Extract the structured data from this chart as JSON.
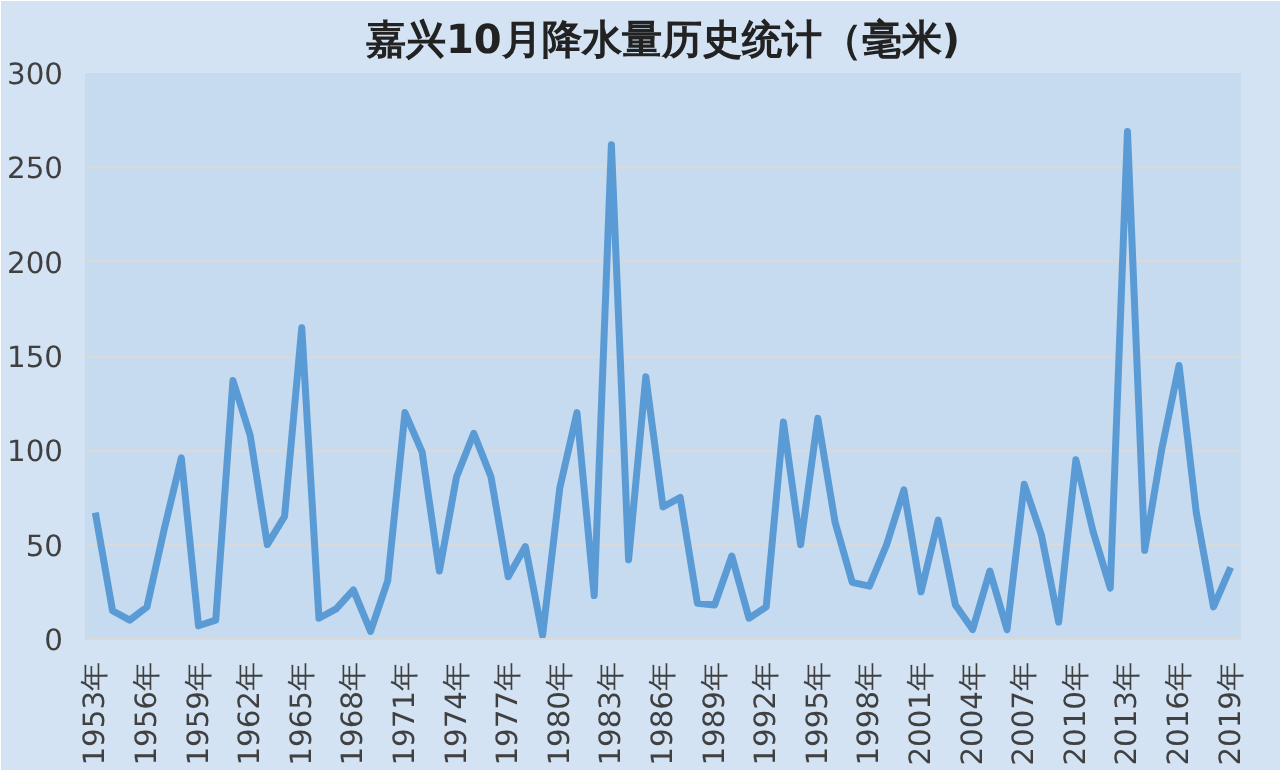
{
  "chart_data": {
    "type": "line",
    "title": "嘉兴10月降水量历史统计（毫米)",
    "categories": [
      "1953年",
      null,
      null,
      "1956年",
      null,
      null,
      "1959年",
      null,
      null,
      "1962年",
      null,
      null,
      "1965年",
      null,
      null,
      "1968年",
      null,
      null,
      "1971年",
      null,
      null,
      "1974年",
      null,
      null,
      "1977年",
      null,
      null,
      "1980年",
      null,
      null,
      "1983年",
      null,
      null,
      "1986年",
      null,
      null,
      "1989年",
      null,
      null,
      "1992年",
      null,
      null,
      "1995年",
      null,
      null,
      "1998年",
      null,
      null,
      "2001年",
      null,
      null,
      "2004年",
      null,
      null,
      "2007年",
      null,
      null,
      "2010年",
      null,
      null,
      "2013年",
      null,
      null,
      "2016年",
      null,
      null,
      "2019年"
    ],
    "series": [
      {
        "color": "#5b9bd5",
        "values": [
          67,
          15,
          10,
          17,
          58,
          96,
          7,
          10,
          137,
          108,
          50,
          65,
          165,
          11,
          16,
          26,
          4,
          31,
          120,
          99,
          36,
          86,
          109,
          86,
          33,
          49,
          2,
          80,
          120,
          23,
          262,
          42,
          139,
          70,
          75,
          19,
          18,
          44,
          11,
          17,
          115,
          50,
          117,
          62,
          30,
          28,
          50,
          79,
          25,
          63,
          18,
          5,
          36,
          5,
          82,
          55,
          9,
          95,
          57,
          27,
          269,
          47,
          101,
          145,
          67,
          17,
          38
        ]
      }
    ],
    "ylim": [
      0,
      300
    ],
    "yticks": [
      0,
      50,
      100,
      150,
      200,
      250,
      300
    ],
    "grid": "y",
    "line_style": "solid",
    "marker": "none"
  }
}
